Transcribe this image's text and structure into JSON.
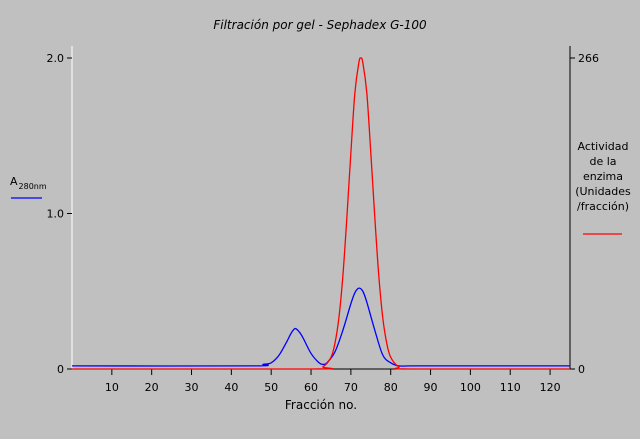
{
  "chart_data": {
    "type": "line",
    "title": "Filtración por gel - Sephadex G-100",
    "xlabel": "Fracción no.",
    "xlim": [
      0,
      125
    ],
    "x_ticks": [
      10,
      20,
      30,
      40,
      50,
      60,
      70,
      80,
      90,
      100,
      110,
      120
    ],
    "left_axis": {
      "label_main": "A",
      "label_sub": "280nm",
      "ylim": [
        0,
        2.0
      ],
      "tick_labels": [
        "0",
        "1.0",
        "2.0"
      ],
      "tick_values": [
        0,
        1.0,
        2.0
      ]
    },
    "right_axis": {
      "label_lines": [
        "Actividad",
        "de la",
        "enzima",
        "(Unidades",
        "/fracción)"
      ],
      "ylim": [
        0,
        266
      ],
      "tick_labels": [
        "0",
        "266"
      ],
      "tick_values": [
        0,
        266
      ]
    },
    "grid": false,
    "series": [
      {
        "axis": "left",
        "color": "#0000ff",
        "x": [
          0,
          45,
          48,
          50,
          52,
          54,
          55,
          56,
          57,
          58,
          60,
          62,
          63,
          64,
          66,
          68,
          70,
          71,
          72,
          73,
          74,
          76,
          78,
          80,
          82,
          85,
          90,
          125
        ],
        "y": [
          0.02,
          0.02,
          0.03,
          0.04,
          0.09,
          0.18,
          0.23,
          0.26,
          0.24,
          0.2,
          0.1,
          0.04,
          0.03,
          0.04,
          0.11,
          0.25,
          0.42,
          0.49,
          0.52,
          0.5,
          0.43,
          0.25,
          0.09,
          0.04,
          0.02,
          0.02,
          0.02,
          0.02
        ]
      },
      {
        "axis": "right",
        "color": "#ff0000",
        "x": [
          0,
          60,
          63,
          65,
          66,
          67,
          68,
          69,
          70,
          71,
          72,
          72.5,
          73,
          74,
          75,
          76,
          77,
          78,
          79,
          80,
          82,
          85,
          125
        ],
        "y": [
          0,
          0,
          2,
          10,
          22,
          44,
          80,
          130,
          185,
          236,
          262,
          266,
          262,
          236,
          185,
          130,
          80,
          44,
          22,
          10,
          2,
          0,
          0
        ]
      }
    ]
  }
}
